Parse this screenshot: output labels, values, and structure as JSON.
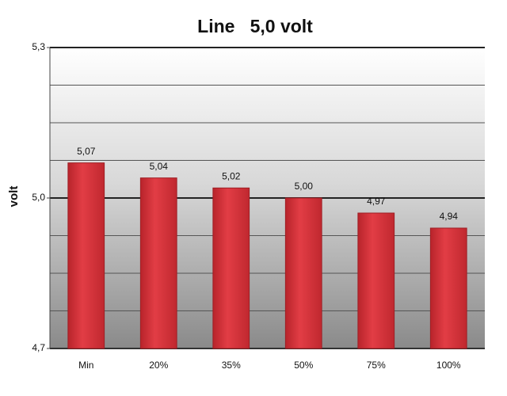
{
  "chart_data": {
    "type": "bar",
    "title": "Line   5,0 volt",
    "y_label": "volt",
    "categories": [
      "Min",
      "20%",
      "35%",
      "50%",
      "75%",
      "100%"
    ],
    "values": [
      5.07,
      5.04,
      5.02,
      5.0,
      4.97,
      4.94
    ],
    "value_labels": [
      "5,07",
      "5,04",
      "5,02",
      "5,00",
      "4,97",
      "4,94"
    ],
    "color": "#d8313a",
    "ylim": [
      4.7,
      5.3
    ],
    "yticks": [
      {
        "value": 4.7,
        "label": "4,7"
      },
      {
        "value": 5.0,
        "label": "5,0"
      },
      {
        "value": 5.3,
        "label": "5,3"
      }
    ],
    "grid": true
  }
}
